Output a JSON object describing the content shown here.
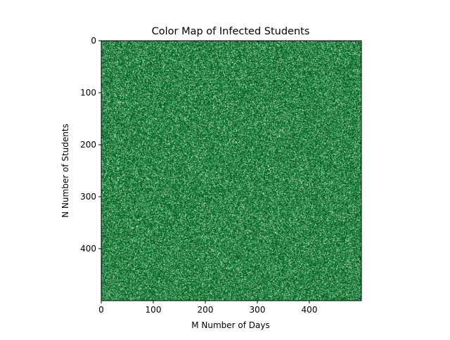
{
  "chart_data": {
    "type": "heatmap",
    "title": "Color Map of Infected Students",
    "xlabel": "M Number of Days",
    "ylabel": "N Number of Students",
    "n_cols": 500,
    "n_rows": 500,
    "xlim": [
      0,
      500
    ],
    "ylim": [
      500,
      0
    ],
    "y_axis_inverted": true,
    "x_ticks": [
      0,
      100,
      200,
      300,
      400
    ],
    "y_ticks": [
      0,
      100,
      200,
      300,
      400
    ],
    "value_range": [
      0,
      1
    ],
    "colormap": "Greens",
    "colors": {
      "low": "#e5f5e0",
      "mid_low": "#a1d99b",
      "mid": "#41ab5d",
      "high": "#006d2c",
      "max": "#00441b"
    },
    "distribution": "random noise",
    "grid": false,
    "legend": "none"
  }
}
